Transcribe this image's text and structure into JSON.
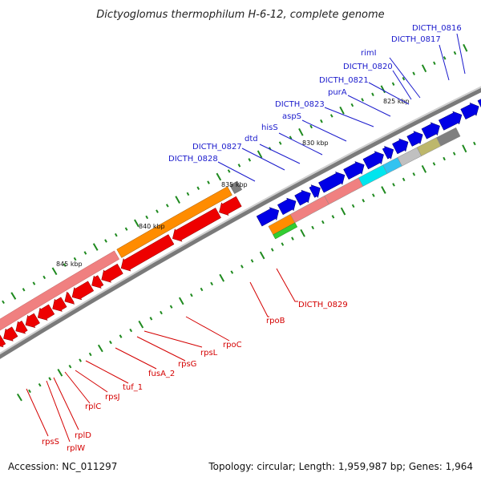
{
  "title": "Dictyoglomus thermophilum H-6-12, complete genome",
  "footer": {
    "accession": "Accession: NC_011297",
    "summary": "Topology: circular; Length: 1,959,987 bp; Genes: 1,964"
  },
  "scale_labels": [
    "825 kbp",
    "830 kbp",
    "835 kbp",
    "840 kbp",
    "845 kbp"
  ],
  "gene_labels_blue": [
    "DICTH_0816",
    "DICTH_0817",
    "rimI",
    "DICTH_0820",
    "DICTH_0821",
    "purA",
    "DICTH_0823",
    "aspS",
    "hisS",
    "dtd",
    "DICTH_0827",
    "DICTH_0828"
  ],
  "gene_labels_red": [
    "DICTH_0829",
    "rpoB",
    "rpoC",
    "rpsL",
    "rpsG",
    "fusA_2",
    "tuf_1",
    "rpsJ",
    "rplC",
    "rplD",
    "rplW",
    "rpsS"
  ],
  "colors": {
    "forward_strand": "#0000e6",
    "reverse_strand": "#ee0000",
    "label_blue": "#1a1acc",
    "label_red": "#d40000",
    "backbone": "#7a7a7a",
    "tick": "#1f8a1f",
    "cog_salmon": "#f08080",
    "cog_orange": "#ff8c00",
    "cog_cyan": "#00e5ee",
    "cog_skyblue": "#33c3f0",
    "cog_silver": "#c0c0c0",
    "cog_khaki": "#bdb76b",
    "cog_gray": "#7f7f7f",
    "cog_green": "#32cd32"
  }
}
